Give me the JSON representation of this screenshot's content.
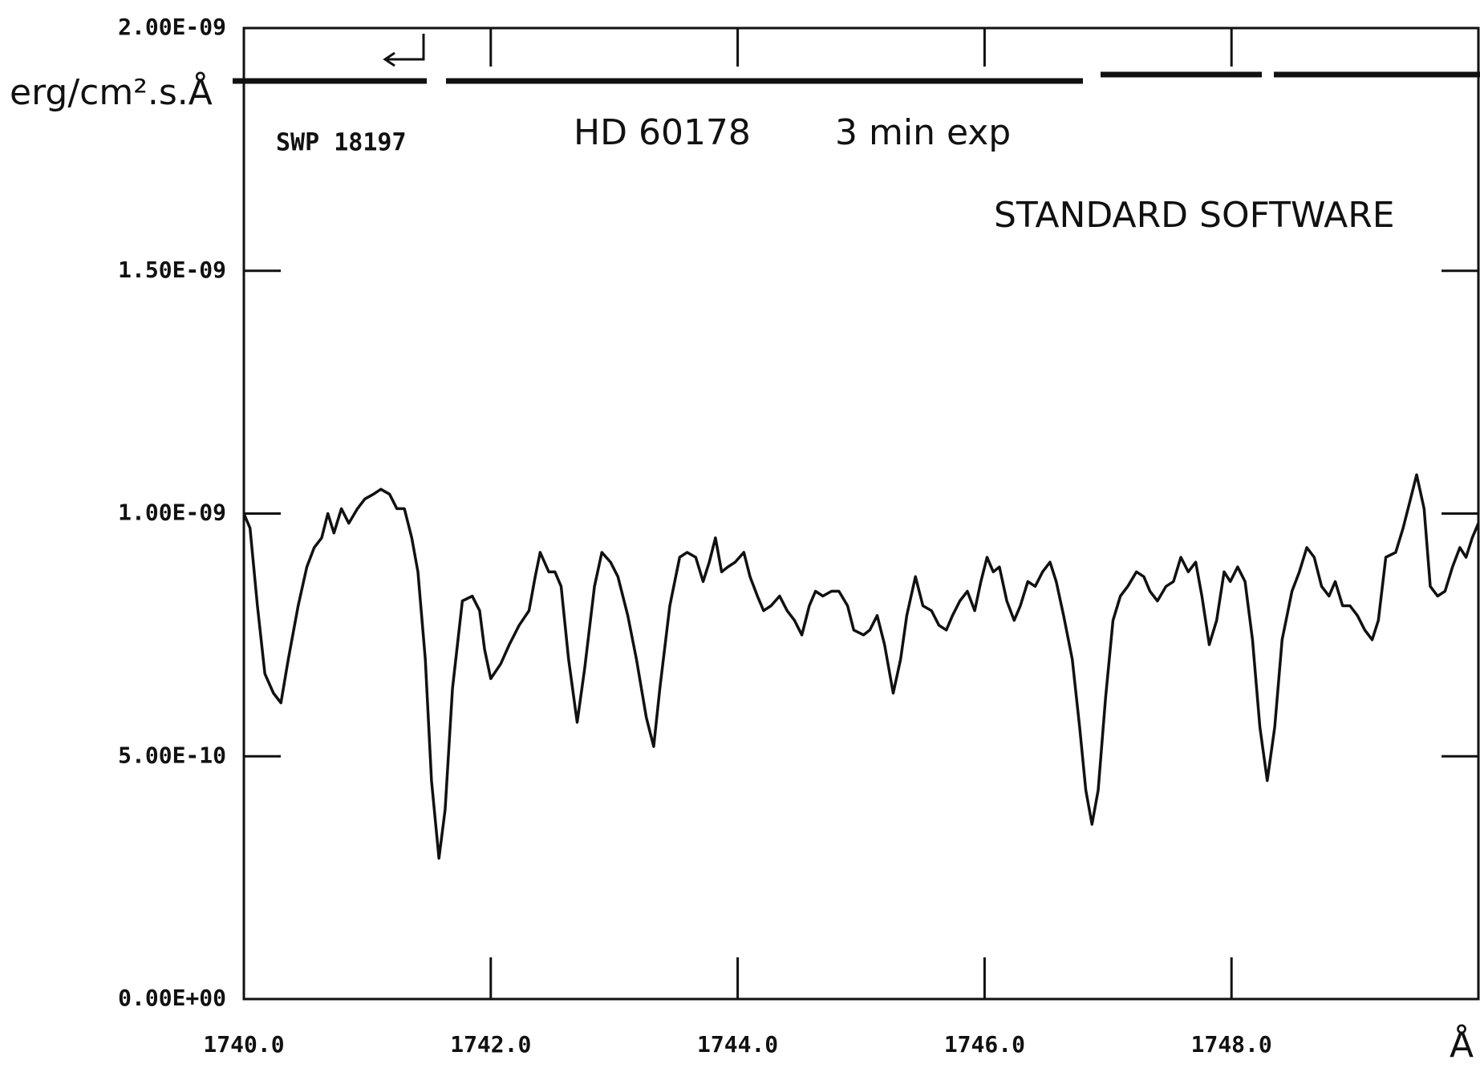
{
  "chart_data": {
    "type": "line",
    "y_axis_label": "erg/cm².s.Å",
    "x_axis_label": "Å",
    "annotations": [
      "SWP 18197",
      "HD 60178",
      "3 min exp",
      "STANDARD SOFTWARE"
    ],
    "color": "#111111",
    "grid": false,
    "xlim": [
      1740,
      1750
    ],
    "ylim": [
      0,
      2e-09
    ],
    "xticks": [
      {
        "value": 1740,
        "label": "1740.0"
      },
      {
        "value": 1742,
        "label": "1742.0"
      },
      {
        "value": 1744,
        "label": "1744.0"
      },
      {
        "value": 1746,
        "label": "1746.0"
      },
      {
        "value": 1748,
        "label": "1748.0"
      }
    ],
    "yticks": [
      {
        "value": 0,
        "label": "0.00E+00"
      },
      {
        "value": 5e-10,
        "label": "5.00E-10"
      },
      {
        "value": 1e-09,
        "label": "1.00E-09"
      },
      {
        "value": 1.5e-09,
        "label": "1.50E-09"
      },
      {
        "value": 2e-09,
        "label": "2.00E-09"
      }
    ],
    "x": [
      1740.0,
      1740.05,
      1740.11,
      1740.17,
      1740.24,
      1740.3,
      1740.36,
      1740.44,
      1740.51,
      1740.57,
      1740.63,
      1740.68,
      1740.73,
      1740.79,
      1740.85,
      1740.92,
      1740.98,
      1741.05,
      1741.11,
      1741.18,
      1741.24,
      1741.3,
      1741.36,
      1741.41,
      1741.47,
      1741.52,
      1741.58,
      1741.63,
      1741.69,
      1741.77,
      1741.85,
      1741.91,
      1741.95,
      1742.0,
      1742.08,
      1742.15,
      1742.23,
      1742.31,
      1742.36,
      1742.4,
      1742.47,
      1742.52,
      1742.57,
      1742.63,
      1742.7,
      1742.76,
      1742.84,
      1742.9,
      1742.97,
      1743.03,
      1743.11,
      1743.18,
      1743.26,
      1743.32,
      1743.37,
      1743.45,
      1743.53,
      1743.59,
      1743.66,
      1743.72,
      1743.77,
      1743.82,
      1743.87,
      1743.92,
      1743.98,
      1744.05,
      1744.1,
      1744.16,
      1744.21,
      1744.27,
      1744.34,
      1744.4,
      1744.46,
      1744.52,
      1744.58,
      1744.63,
      1744.69,
      1744.76,
      1744.82,
      1744.89,
      1744.94,
      1745.02,
      1745.07,
      1745.13,
      1745.19,
      1745.26,
      1745.32,
      1745.37,
      1745.44,
      1745.5,
      1745.57,
      1745.63,
      1745.69,
      1745.74,
      1745.8,
      1745.86,
      1745.92,
      1745.97,
      1746.02,
      1746.07,
      1746.12,
      1746.18,
      1746.24,
      1746.29,
      1746.35,
      1746.41,
      1746.47,
      1746.53,
      1746.58,
      1746.64,
      1746.71,
      1746.77,
      1746.82,
      1746.87,
      1746.92,
      1746.98,
      1747.04,
      1747.1,
      1747.16,
      1747.23,
      1747.29,
      1747.34,
      1747.4,
      1747.47,
      1747.53,
      1747.59,
      1747.65,
      1747.71,
      1747.76,
      1747.82,
      1747.88,
      1747.94,
      1747.99,
      1748.05,
      1748.11,
      1748.17,
      1748.23,
      1748.29,
      1748.35,
      1748.41,
      1748.49,
      1748.55,
      1748.61,
      1748.67,
      1748.73,
      1748.79,
      1748.84,
      1748.9,
      1748.96,
      1749.02,
      1749.08,
      1749.14,
      1749.19,
      1749.25,
      1749.33,
      1749.39,
      1749.45,
      1749.5,
      1749.56,
      1749.61,
      1749.67,
      1749.73,
      1749.79,
      1749.85,
      1749.9,
      1749.95,
      1750.0
    ],
    "values": [
      1e-09,
      9.7e-10,
      8.1e-10,
      6.7e-10,
      6.3e-10,
      6.1e-10,
      7e-10,
      8.1e-10,
      8.9e-10,
      9.3e-10,
      9.5e-10,
      1e-09,
      9.6e-10,
      1.01e-09,
      9.8e-10,
      1.01e-09,
      1.03e-09,
      1.04e-09,
      1.05e-09,
      1.04e-09,
      1.01e-09,
      1.01e-09,
      9.5e-10,
      8.8e-10,
      7e-10,
      4.5e-10,
      2.9e-10,
      3.9e-10,
      6.4e-10,
      8.2e-10,
      8.3e-10,
      8e-10,
      7.2e-10,
      6.6e-10,
      6.9e-10,
      7.3e-10,
      7.7e-10,
      8e-10,
      8.7e-10,
      9.2e-10,
      8.8e-10,
      8.8e-10,
      8.5e-10,
      7e-10,
      5.7e-10,
      6.8e-10,
      8.5e-10,
      9.2e-10,
      9e-10,
      8.7e-10,
      7.9e-10,
      7e-10,
      5.8e-10,
      5.2e-10,
      6.4e-10,
      8.1e-10,
      9.1e-10,
      9.2e-10,
      9.1e-10,
      8.6e-10,
      9e-10,
      9.5e-10,
      8.8e-10,
      8.9e-10,
      9e-10,
      9.2e-10,
      8.7e-10,
      8.3e-10,
      8e-10,
      8.1e-10,
      8.3e-10,
      8e-10,
      7.8e-10,
      7.5e-10,
      8.1e-10,
      8.4e-10,
      8.3e-10,
      8.4e-10,
      8.4e-10,
      8.1e-10,
      7.6e-10,
      7.5e-10,
      7.6e-10,
      7.9e-10,
      7.3e-10,
      6.3e-10,
      7e-10,
      7.9e-10,
      8.7e-10,
      8.1e-10,
      8e-10,
      7.7e-10,
      7.6e-10,
      7.9e-10,
      8.2e-10,
      8.4e-10,
      8e-10,
      8.6e-10,
      9.1e-10,
      8.8e-10,
      8.9e-10,
      8.2e-10,
      7.8e-10,
      8.1e-10,
      8.6e-10,
      8.5e-10,
      8.8e-10,
      9e-10,
      8.6e-10,
      7.9e-10,
      7e-10,
      5.6e-10,
      4.3e-10,
      3.6e-10,
      4.3e-10,
      6.2e-10,
      7.8e-10,
      8.3e-10,
      8.5e-10,
      8.8e-10,
      8.7e-10,
      8.4e-10,
      8.2e-10,
      8.5e-10,
      8.6e-10,
      9.1e-10,
      8.8e-10,
      9e-10,
      8.3e-10,
      7.3e-10,
      7.8e-10,
      8.8e-10,
      8.6e-10,
      8.9e-10,
      8.6e-10,
      7.4e-10,
      5.6e-10,
      4.5e-10,
      5.6e-10,
      7.4e-10,
      8.4e-10,
      8.8e-10,
      9.3e-10,
      9.1e-10,
      8.5e-10,
      8.3e-10,
      8.6e-10,
      8.1e-10,
      8.1e-10,
      7.9e-10,
      7.6e-10,
      7.4e-10,
      7.8e-10,
      9.1e-10,
      9.2e-10,
      9.7e-10,
      1.03e-09,
      1.08e-09,
      1.01e-09,
      8.5e-10,
      8.3e-10,
      8.4e-10,
      8.9e-10,
      9.3e-10,
      9.1e-10,
      9.5e-10,
      9.8e-10
    ]
  }
}
